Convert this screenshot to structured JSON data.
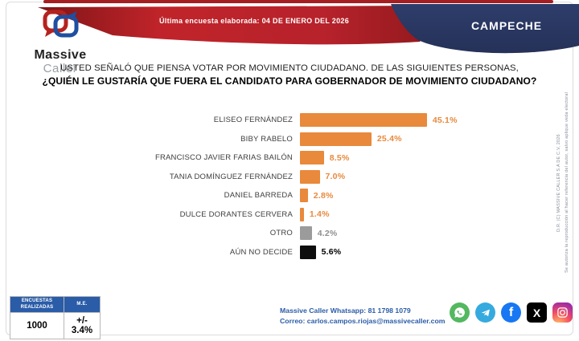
{
  "header": {
    "logo_line1": "Massive",
    "logo_line2": "Caller",
    "banner_text": "Última encuesta elaborada: 04 DE ENERO DEL 2026",
    "state": "CAMPECHE"
  },
  "question": {
    "line1": "USTED SEÑALÓ QUE PIENSA VOTAR POR MOVIMIENTO CIUDADANO. DE LAS SIGUIENTES PERSONAS,",
    "line2": "¿QUIÉN LE GUSTARÍA QUE FUERA EL CANDIDATO PARA GOBERNADOR DE MOVIMIENTO CIUDADANO?"
  },
  "chart_data": {
    "type": "bar",
    "orientation": "horizontal",
    "title": "",
    "categories": [
      "ELISEO FERNÁNDEZ",
      "BIBY RABELO",
      "FRANCISCO JAVIER FARIAS BAILÓN",
      "TANIA DOMÍNGUEZ FERNÁNDEZ",
      "DANIEL BARREDA",
      "DULCE DORANTES CERVERA",
      "OTRO",
      "AÚN NO DECIDE"
    ],
    "values": [
      45.1,
      25.4,
      8.5,
      7.0,
      2.8,
      1.4,
      4.2,
      5.6
    ],
    "value_labels": [
      "45.1%",
      "25.4%",
      "8.5%",
      "7.0%",
      "2.8%",
      "1.4%",
      "4.2%",
      "5.6%"
    ],
    "bar_colors": [
      "#E8893C",
      "#E8893C",
      "#E8893C",
      "#E8893C",
      "#E8893C",
      "#E8893C",
      "#9B9B9B",
      "#0D0D0D"
    ],
    "label_colors": [
      "#E8893C",
      "#E8893C",
      "#E8893C",
      "#E8893C",
      "#E8893C",
      "#E8893C",
      "#8F8F8F",
      "#000000"
    ],
    "xlim": [
      0,
      50
    ],
    "grid": false,
    "legend": null
  },
  "stats_table": {
    "headers": [
      "ENCUESTAS REALIZADAS",
      "M.E."
    ],
    "values": [
      "1000",
      "+/- 3.4%"
    ]
  },
  "footer": {
    "whatsapp_line": "Massive Caller Whatsapp: 81 1798 1079",
    "email_line": "Correo: carlos.campos.riojas@massivecaller.com",
    "social_icons": [
      "whatsapp-icon",
      "telegram-icon",
      "facebook-icon",
      "x-icon",
      "instagram-icon"
    ]
  },
  "copyright": {
    "line1": "D.R. (C) MASSIVE CALLER S.A DE C.V, 2026",
    "line2": "Se autoriza la reproducción al hacer referencia del autor, salvo aplique veda electoral"
  },
  "colors": {
    "accent_orange": "#E8893C",
    "banner_red": "#B02025",
    "banner_blue": "#2B3A66",
    "table_header_blue": "#2A5CA8",
    "contact_blue": "#2A5CA8"
  }
}
